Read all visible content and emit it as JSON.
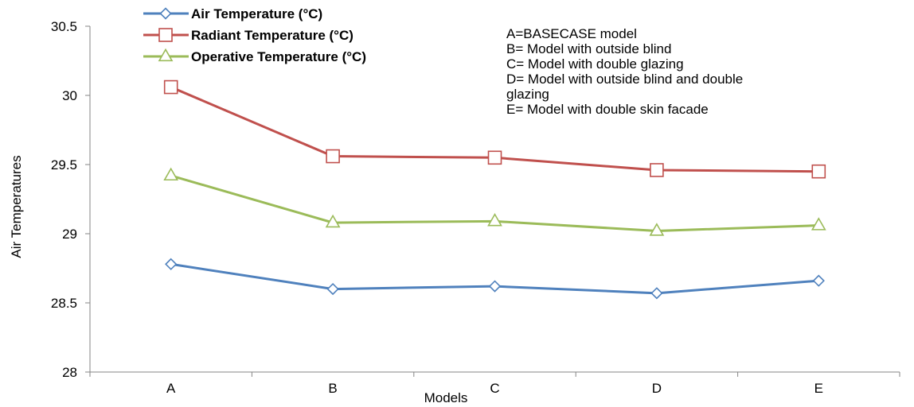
{
  "chart_data": {
    "type": "line",
    "xlabel": "Models",
    "ylabel": "Air Temperatures",
    "categories": [
      "A",
      "B",
      "C",
      "D",
      "E"
    ],
    "ylim": [
      28,
      30.5
    ],
    "yticks": [
      "28",
      "28.5",
      "29",
      "29.5",
      "30",
      "30.5"
    ],
    "grid": false,
    "legend_position": "top-left",
    "series": [
      {
        "name": "Air Temperature (°C)",
        "marker": "diamond",
        "color": "#4f81bd",
        "values": [
          28.78,
          28.6,
          28.62,
          28.57,
          28.66
        ]
      },
      {
        "name": "Radiant Temperature (°C)",
        "marker": "square",
        "color": "#c0504d",
        "values": [
          30.06,
          29.56,
          29.55,
          29.46,
          29.45
        ]
      },
      {
        "name": "Operative Temperature (°C)",
        "marker": "triangle",
        "color": "#9bbb59",
        "values": [
          29.42,
          29.08,
          29.09,
          29.02,
          29.06
        ]
      }
    ],
    "annotations": [
      "A=BASECASE model",
      "B= Model with outside blind",
      "C= Model with double glazing",
      "D= Model with outside blind and double",
      "glazing",
      "E= Model with double skin facade"
    ]
  }
}
